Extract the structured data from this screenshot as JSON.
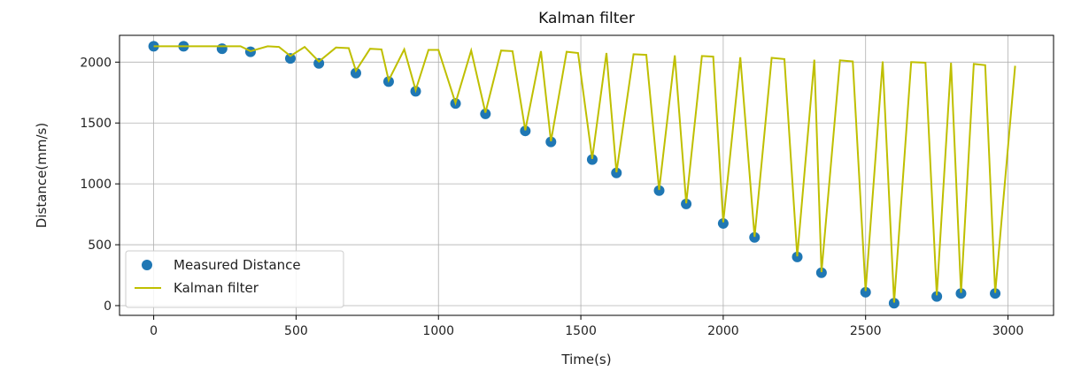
{
  "chart_data": {
    "type": "scatter+line",
    "title": "Kalman filter",
    "xlabel": "Time(s)",
    "ylabel": "Distance(mm/s)",
    "xlim": [
      -120,
      3160
    ],
    "ylim": [
      -80,
      2220
    ],
    "xticks": [
      0,
      500,
      1000,
      1500,
      2000,
      2500,
      3000
    ],
    "yticks": [
      0,
      500,
      1000,
      1500,
      2000
    ],
    "grid": true,
    "legend": "lower-left",
    "colors": {
      "measured": "#1f77b4",
      "kalman": "#bfbf00"
    },
    "series": [
      {
        "name": "Measured Distance",
        "kind": "scatter",
        "x": [
          0,
          105,
          240,
          340,
          480,
          580,
          710,
          825,
          920,
          1060,
          1165,
          1305,
          1395,
          1540,
          1625,
          1775,
          1870,
          2000,
          2110,
          2260,
          2345,
          2500,
          2600,
          2750,
          2835,
          2955
        ],
        "y": [
          2130,
          2130,
          2110,
          2085,
          2030,
          1990,
          1910,
          1840,
          1760,
          1660,
          1575,
          1435,
          1345,
          1200,
          1090,
          945,
          835,
          675,
          560,
          400,
          270,
          110,
          20,
          75,
          100,
          100
        ]
      },
      {
        "name": "Kalman filter",
        "kind": "line",
        "x": [
          0,
          105,
          175,
          240,
          305,
          340,
          400,
          440,
          480,
          530,
          580,
          640,
          685,
          710,
          760,
          800,
          825,
          880,
          920,
          965,
          1000,
          1060,
          1115,
          1165,
          1220,
          1260,
          1305,
          1360,
          1395,
          1450,
          1490,
          1540,
          1590,
          1625,
          1685,
          1730,
          1775,
          1830,
          1870,
          1925,
          1965,
          2000,
          2060,
          2110,
          2170,
          2215,
          2260,
          2320,
          2345,
          2410,
          2455,
          2500,
          2560,
          2600,
          2660,
          2710,
          2750,
          2800,
          2835,
          2880,
          2920,
          2955,
          3025
        ],
        "y": [
          2130,
          2130,
          2130,
          2130,
          2130,
          2090,
          2130,
          2125,
          2050,
          2125,
          2005,
          2120,
          2115,
          1930,
          2110,
          2105,
          1850,
          2105,
          1770,
          2100,
          2100,
          1665,
          2095,
          1585,
          2095,
          2090,
          1440,
          2090,
          1350,
          2085,
          2075,
          1205,
          2075,
          1095,
          2065,
          2060,
          950,
          2055,
          840,
          2050,
          2045,
          685,
          2040,
          565,
          2035,
          2025,
          405,
          2020,
          275,
          2015,
          2005,
          120,
          2005,
          25,
          2000,
          1995,
          85,
          1995,
          105,
          1985,
          1975,
          105,
          1970
        ]
      }
    ]
  }
}
